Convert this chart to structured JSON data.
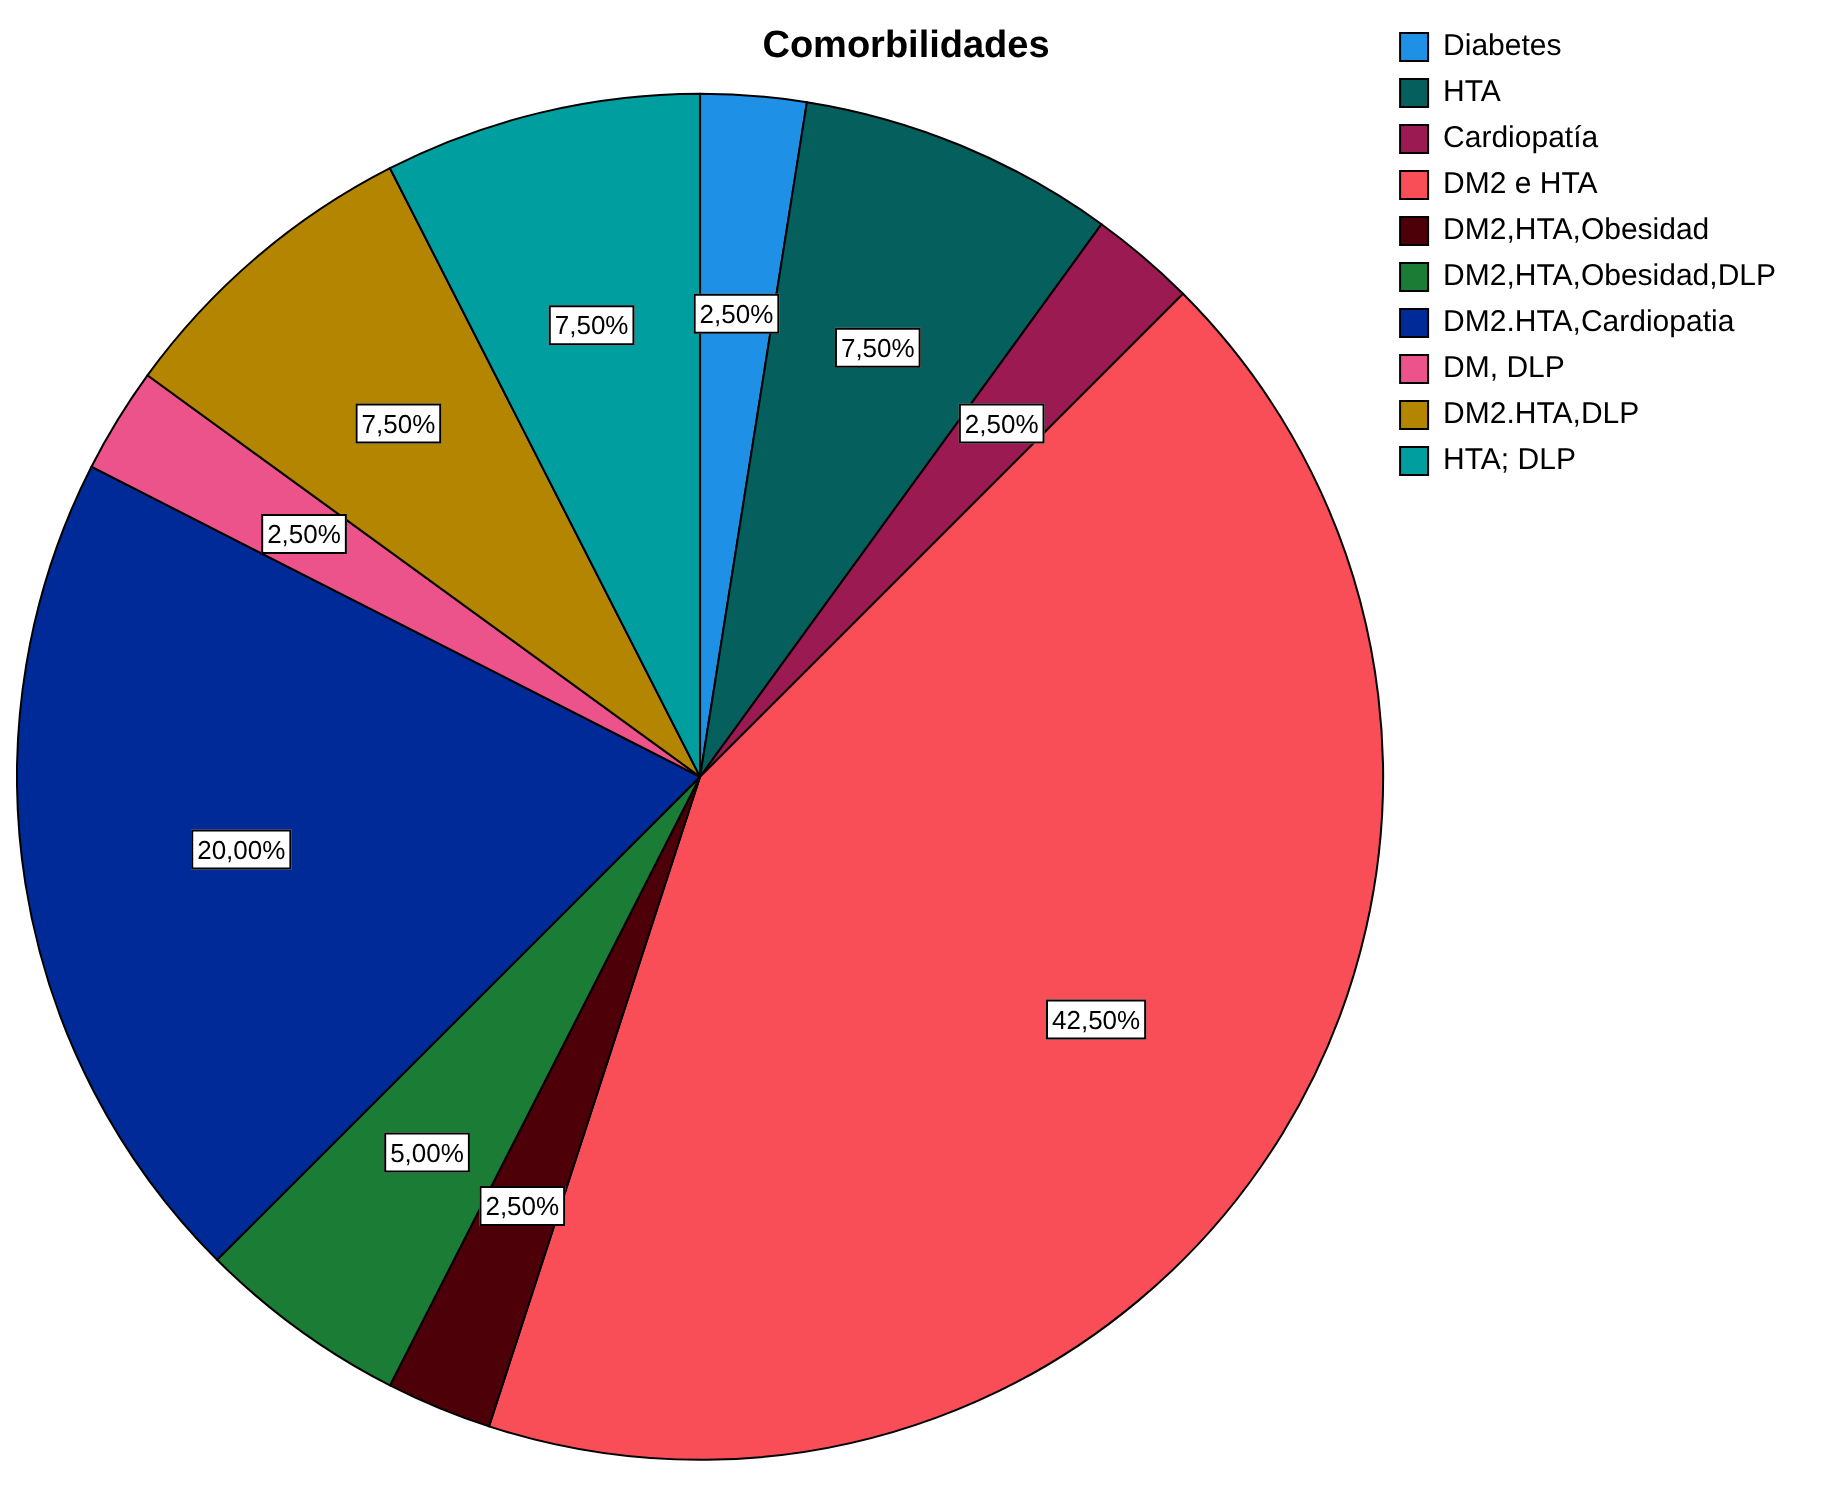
{
  "chart_data": {
    "type": "pie",
    "title": "Comorbilidades",
    "categories": [
      "Diabetes",
      "HTA",
      "Cardiopatía",
      "DM2 e HTA",
      "DM2,HTA,Obesidad",
      "DM2,HTA,Obesidad,DLP",
      "DM2.HTA,Cardiopatia",
      "DM, DLP",
      "DM2.HTA,DLP",
      "HTA; DLP"
    ],
    "values": [
      2.5,
      7.5,
      2.5,
      42.5,
      2.5,
      5,
      20,
      2.5,
      7.5,
      7.5
    ],
    "colors": [
      "#1e90e6",
      "#045f5d",
      "#9c1a52",
      "#f94d57",
      "#4d0008",
      "#1b7c36",
      "#002a97",
      "#ec538a",
      "#b38500",
      "#009e9e"
    ],
    "value_labels": [
      "2,50%",
      "7,50%",
      "2,50%",
      "42,50%",
      "2,50%",
      "5,00%",
      "20,00%",
      "2,50%",
      "7,50%",
      "7,50%"
    ],
    "legend": "top right"
  }
}
